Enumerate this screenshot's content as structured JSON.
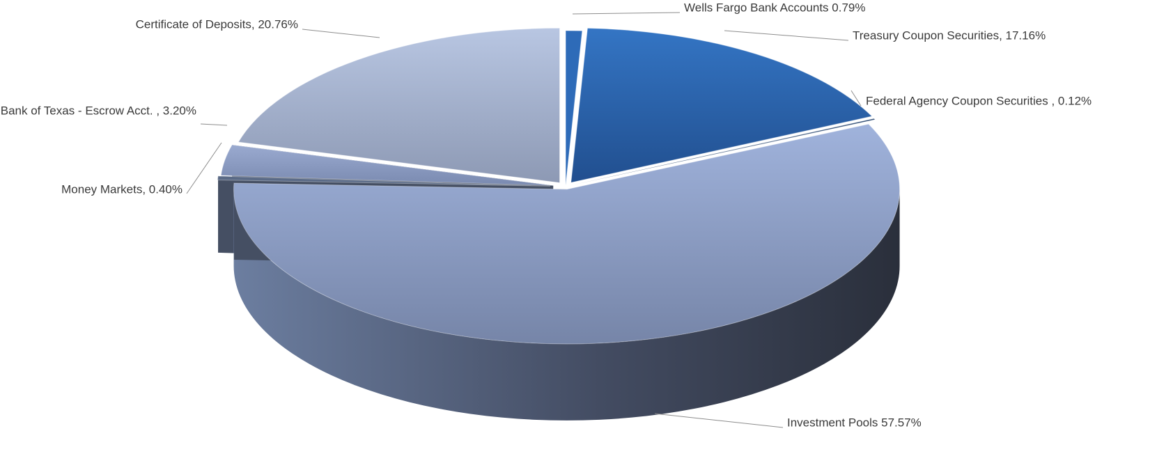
{
  "chart_data": {
    "type": "pie",
    "title": "",
    "exploded": true,
    "three_d": true,
    "slices": [
      {
        "name": "Wells Fargo Bank Accounts",
        "value": 0.79,
        "label": "Wells Fargo Bank Accounts   0.79%",
        "color": "#2e6bb8"
      },
      {
        "name": "Treasury Coupon Securities",
        "value": 17.16,
        "label": "Treasury Coupon Securities, 17.16%",
        "color": "#2f66ad"
      },
      {
        "name": "Federal Agency Coupon Securities",
        "value": 0.12,
        "label": "Federal Agency Coupon Securities , 0.12%",
        "color": "#2c4a73"
      },
      {
        "name": "Investment Pools",
        "value": 57.57,
        "label": "Investment Pools  57.57%",
        "color": "#93a7cf"
      },
      {
        "name": "Money Markets",
        "value": 0.4,
        "label": "Money Markets, 0.40%",
        "color": "#5a6a86"
      },
      {
        "name": "Bank of Texas - Escrow Acct.",
        "value": 3.2,
        "label": "Bank of Texas - Escrow Acct. , 3.20%",
        "color": "#8ea0c8"
      },
      {
        "name": "Certificate of Deposits",
        "value": 20.76,
        "label": "Certificate of Deposits, 20.76%",
        "color": "#aebbd6"
      }
    ]
  }
}
